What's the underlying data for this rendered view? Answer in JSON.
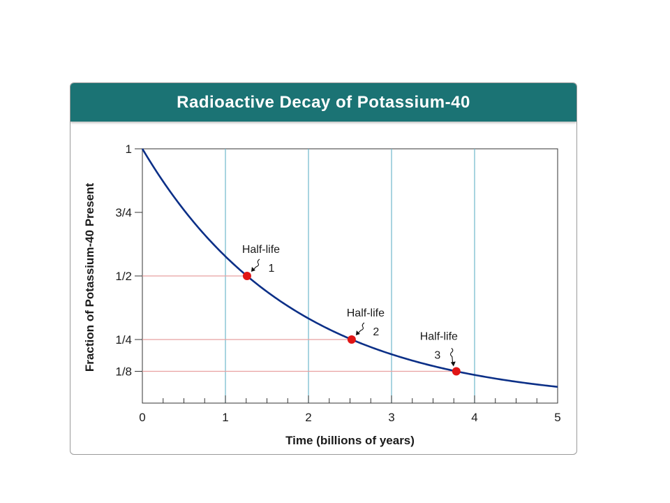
{
  "colors": {
    "title_bg": "#1b7374",
    "curve": "#0b2f87",
    "grid": "#6fb8cc",
    "guide": "#e8a0a0",
    "point": "#e01515"
  },
  "chart_data": {
    "type": "line",
    "title": "Radioactive Decay of Potassium-40",
    "xlabel": "Time (billions of years)",
    "ylabel": "Fraction of Potassium-40 Present",
    "xlim": [
      0,
      5
    ],
    "ylim": [
      0,
      1
    ],
    "x_ticks": [
      0,
      1,
      2,
      3,
      4,
      5
    ],
    "x_tick_labels": [
      "0",
      "1",
      "2",
      "3",
      "4",
      "5"
    ],
    "x_minor_step": 0.25,
    "y_ticks": [
      {
        "value": 1,
        "label": "1"
      },
      {
        "value": 0.75,
        "label": "3/4"
      },
      {
        "value": 0.5,
        "label": "1/2"
      },
      {
        "value": 0.25,
        "label": "1/4"
      },
      {
        "value": 0.125,
        "label": "1/8"
      }
    ],
    "vertical_gridlines": [
      1,
      2,
      3,
      4
    ],
    "half_life": 1.26,
    "series": [
      {
        "x": [
          0,
          0.25,
          0.5,
          0.75,
          1.0,
          1.26,
          1.5,
          1.75,
          2.0,
          2.25,
          2.52,
          2.75,
          3.0,
          3.25,
          3.5,
          3.78,
          4.0,
          4.25,
          4.5,
          4.75,
          5.0
        ],
        "y": [
          1.0,
          0.87,
          0.76,
          0.66,
          0.58,
          0.5,
          0.44,
          0.38,
          0.33,
          0.29,
          0.25,
          0.22,
          0.19,
          0.17,
          0.15,
          0.125,
          0.11,
          0.097,
          0.084,
          0.073,
          0.064
        ]
      }
    ],
    "annotations": [
      {
        "label": "Half-life",
        "number": "1",
        "x": 1.26,
        "y": 0.5
      },
      {
        "label": "Half-life",
        "number": "2",
        "x": 2.52,
        "y": 0.25
      },
      {
        "label": "Half-life",
        "number": "3",
        "x": 3.78,
        "y": 0.125
      }
    ]
  }
}
